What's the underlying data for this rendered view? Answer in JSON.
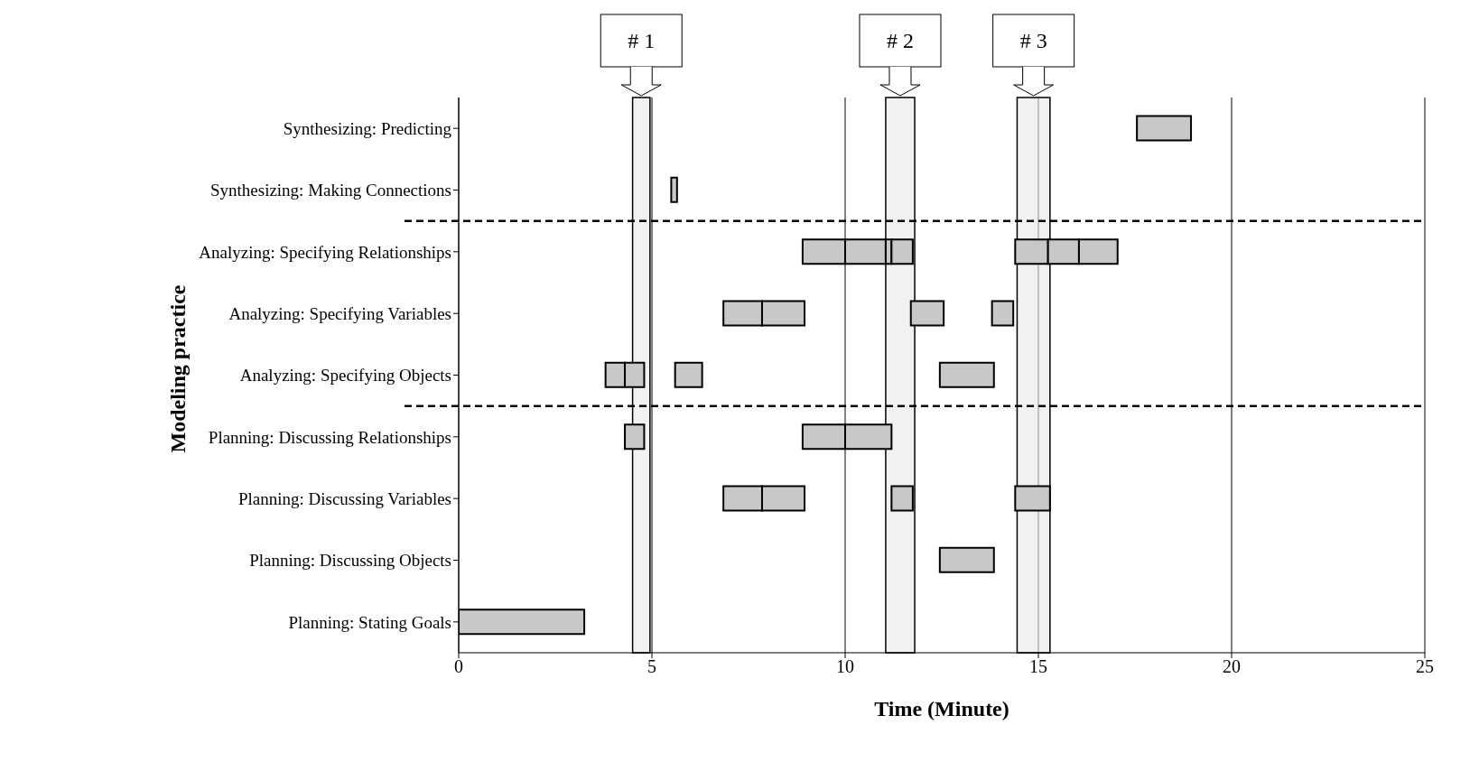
{
  "chart_data": {
    "type": "bar",
    "orientation": "horizontal",
    "xlabel": "Time (Minute)",
    "ylabel": "Modeling practice",
    "categories": [
      "Synthesizing: Predicting",
      "Synthesizing: Making Connections",
      "Analyzing: Specifying Relationships",
      "Analyzing: Specifying Variables",
      "Analyzing: Specifying Objects",
      "Planning: Discussing Relationships",
      "Planning: Discussing Variables",
      "Planning: Discussing Objects",
      "Planning: Stating Goals"
    ],
    "series": [
      {
        "color": "#c8c8c8",
        "base": [
          17.55,
          5.5,
          8.9,
          6.85,
          3.8,
          4.3,
          6.85,
          12.45,
          0
        ],
        "values": [
          1.4,
          0.15,
          1.1,
          1.0,
          0.5,
          0.5,
          1.0,
          1.4,
          3.25
        ]
      },
      {
        "color": "#c8c8c8",
        "base": [
          null,
          null,
          10,
          7.85,
          4.3,
          8.9,
          7.85,
          null,
          null
        ],
        "values": [
          null,
          null,
          1.05,
          1.1,
          0.5,
          1.1,
          1.1,
          null,
          null
        ]
      },
      {
        "color": "#c8c8c8",
        "base": [
          null,
          null,
          11.05,
          11.7,
          5.6,
          10,
          11.2,
          null,
          null
        ],
        "values": [
          null,
          null,
          0.15,
          0.85,
          0.7,
          1.2,
          0.55,
          null,
          null
        ]
      },
      {
        "color": "#c8c8c8",
        "base": [
          null,
          null,
          11.2,
          13.8,
          12.45,
          null,
          14.4,
          null,
          null
        ],
        "values": [
          null,
          null,
          0.55,
          0.55,
          1.4,
          null,
          0.9,
          null,
          null
        ]
      },
      {
        "color": "#c8c8c8",
        "base": [
          null,
          null,
          14.4,
          null,
          null,
          null,
          null,
          null,
          null
        ],
        "values": [
          null,
          null,
          0.85,
          null,
          null,
          null,
          null,
          null,
          null
        ]
      },
      {
        "color": "#c8c8c8",
        "base": [
          null,
          null,
          15.25,
          null,
          null,
          null,
          null,
          null,
          null
        ],
        "values": [
          null,
          null,
          0.8,
          null,
          null,
          null,
          null,
          null,
          null
        ]
      },
      {
        "color": "#c8c8c8",
        "base": [
          null,
          null,
          16.05,
          null,
          null,
          null,
          null,
          null,
          null
        ],
        "values": [
          null,
          null,
          1.0,
          null,
          null,
          null,
          null,
          null,
          null
        ]
      }
    ],
    "xlim": [
      0,
      25
    ],
    "xticks": [
      0,
      5,
      10,
      15,
      20,
      25
    ],
    "grid": "x",
    "legend": false,
    "bands": [
      {
        "axis": "x",
        "from": 4.5,
        "to": 4.95,
        "label": "# 1",
        "color": "#e8e8e8"
      },
      {
        "axis": "x",
        "from": 11.05,
        "to": 11.8,
        "label": "# 2",
        "color": "#e8e8e8"
      },
      {
        "axis": "x",
        "from": 14.45,
        "to": 15.3,
        "label": "# 3",
        "color": "#e8e8e8"
      }
    ]
  }
}
